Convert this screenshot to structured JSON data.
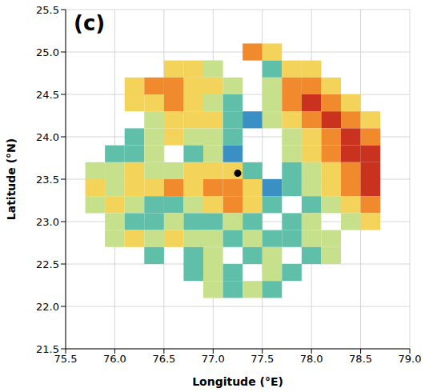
{
  "chart_data": {
    "type": "heatmap",
    "title": "(c)",
    "x_label": "Longitude (°E)",
    "y_label": "Latitude (°N)",
    "xlim": [
      75.5,
      79
    ],
    "ylim": [
      21.5,
      25.5
    ],
    "xticks": [
      75.5,
      {
        "value": 76,
        "label": "76.0"
      },
      76.5,
      {
        "value": 77,
        "label": "77.0"
      },
      77.5,
      {
        "value": 78,
        "label": "78.0"
      },
      78.5,
      {
        "value": 79,
        "label": "79.0"
      }
    ],
    "yticks": [
      21.5,
      {
        "value": 22,
        "label": "22.0"
      },
      22.5,
      {
        "value": 23,
        "label": "23.0"
      },
      23.5,
      {
        "value": 24,
        "label": "24.0"
      },
      24.5,
      {
        "value": 25,
        "label": "25.0"
      },
      25.5
    ],
    "grid": true,
    "colors": [
      "#3a8fc4",
      "#5fbfa8",
      "#c6e08c",
      "#f3d35a",
      "#f08a2c",
      "#c8321e"
    ],
    "x": [
      75.8,
      76.0,
      76.2,
      76.4,
      76.6,
      76.8,
      77.0,
      77.2,
      77.4,
      77.6,
      77.8,
      78.0,
      78.2,
      78.4,
      78.6,
      78.8
    ],
    "y": [
      25.0,
      24.8,
      24.6,
      24.4,
      24.2,
      24.0,
      23.8,
      23.6,
      23.4,
      23.2,
      23.0,
      22.8,
      22.6,
      22.4,
      22.2
    ],
    "z": [
      [
        null,
        null,
        null,
        null,
        null,
        null,
        null,
        null,
        5,
        4,
        null,
        null,
        null,
        null,
        null,
        null
      ],
      [
        null,
        null,
        null,
        null,
        4,
        4,
        3,
        null,
        null,
        2,
        4,
        4,
        null,
        null,
        null,
        null
      ],
      [
        null,
        null,
        4,
        5,
        5,
        4,
        4,
        3,
        null,
        3,
        5,
        5,
        4,
        null,
        null,
        null
      ],
      [
        null,
        null,
        4,
        4,
        5,
        4,
        3,
        2,
        null,
        3,
        5,
        6,
        5,
        4,
        null,
        null
      ],
      [
        null,
        null,
        null,
        3,
        4,
        4,
        4,
        2,
        1,
        3,
        4,
        5,
        6,
        5,
        4,
        null
      ],
      [
        null,
        null,
        2,
        3,
        4,
        3,
        3,
        2,
        null,
        null,
        3,
        4,
        5,
        6,
        5,
        null
      ],
      [
        null,
        2,
        2,
        3,
        null,
        2,
        3,
        1,
        null,
        null,
        3,
        4,
        5,
        6,
        6,
        null
      ],
      [
        3,
        3,
        4,
        3,
        3,
        4,
        4,
        4,
        2,
        null,
        2,
        3,
        4,
        5,
        6,
        null
      ],
      [
        4,
        3,
        4,
        4,
        5,
        4,
        5,
        5,
        4,
        1,
        2,
        3,
        4,
        5,
        6,
        null
      ],
      [
        3,
        4,
        3,
        2,
        2,
        3,
        4,
        5,
        4,
        2,
        null,
        2,
        3,
        4,
        5,
        null
      ],
      [
        null,
        3,
        2,
        2,
        3,
        2,
        2,
        3,
        2,
        null,
        2,
        3,
        null,
        3,
        4,
        null
      ],
      [
        null,
        3,
        4,
        3,
        4,
        3,
        3,
        2,
        3,
        2,
        2,
        3,
        3,
        null,
        null,
        null
      ],
      [
        null,
        null,
        null,
        2,
        null,
        2,
        3,
        null,
        2,
        3,
        null,
        2,
        3,
        null,
        null,
        null
      ],
      [
        null,
        null,
        null,
        null,
        null,
        2,
        3,
        2,
        null,
        3,
        2,
        null,
        null,
        null,
        null,
        null
      ],
      [
        null,
        null,
        null,
        null,
        null,
        null,
        3,
        2,
        3,
        2,
        null,
        null,
        null,
        null,
        null,
        null
      ]
    ],
    "points": [
      {
        "x": 77.25,
        "y": 23.57,
        "color": "#000000"
      }
    ]
  }
}
